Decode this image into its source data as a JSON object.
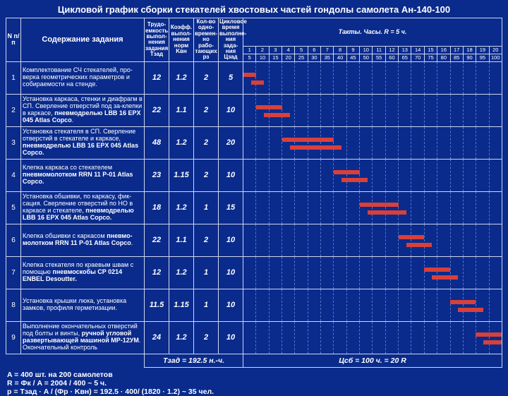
{
  "title": "Цикловой график сборки стекателей хвостовых частей гондолы самолета Ан-140-100",
  "hdr": {
    "n": "N п/п",
    "desc": "Содержание задания",
    "t": "Трудо-емкость выпол-нения задания Тзад",
    "k": "Коэфф. выпол-нения норм Kвн",
    "p": "Кол-во одно-времен-но рабо-тающих рз",
    "c": "Цикловое время выполне-ния зада-ния Цзад",
    "takt": "Такты. Часы. R = 5 ч."
  },
  "axis_top": [
    "1",
    "2",
    "3",
    "4",
    "5",
    "6",
    "7",
    "8",
    "9",
    "10",
    "11",
    "12",
    "13",
    "14",
    "15",
    "16",
    "17",
    "18",
    "19",
    "20"
  ],
  "axis_bot": [
    "5",
    "10",
    "15",
    "20",
    "25",
    "30",
    "35",
    "40",
    "45",
    "50",
    "55",
    "60",
    "65",
    "70",
    "75",
    "80",
    "85",
    "90",
    "95",
    "100"
  ],
  "rows": [
    {
      "n": "1",
      "d": "Комплектование СЧ стекателей, про-верка геометрических параметров и собираемости на стенде.",
      "t": "12",
      "k": "1.2",
      "p": "2",
      "c": "5",
      "s1": 0,
      "w1": 5,
      "s2": 3,
      "w2": 5
    },
    {
      "n": "2",
      "d": "Установка каркаса, стенки и диафрагм в СП. Сверление отверстий под за-клепки в каркасе, <b>пневмодрелью LBB 16 EPX 045 Atlas Copco</b>.",
      "t": "22",
      "k": "1.1",
      "p": "2",
      "c": "10",
      "s1": 5,
      "w1": 10,
      "s2": 8,
      "w2": 10
    },
    {
      "n": "3",
      "d": "Установка стекателя в СП. Сверление отверстий в стекателе и каркасе, <b>пневмодрелью LBB 16 EPX 045 Atlas Copco.</b>",
      "t": "48",
      "k": "1.2",
      "p": "2",
      "c": "20",
      "s1": 15,
      "w1": 20,
      "s2": 18,
      "w2": 20
    },
    {
      "n": "4",
      "d": "Клепка каркаса со стекателем <b>пневмомолотком RRN 11 P-01 Atlas Copco.</b>",
      "t": "23",
      "k": "1.15",
      "p": "2",
      "c": "10",
      "s1": 35,
      "w1": 10,
      "s2": 38,
      "w2": 10
    },
    {
      "n": "5",
      "d": "Установка обшивки, по каркасу, фик-сация. Сверление отверстий по НО в каркасе и стекателе, <b>пневмодрелью LBB 16 EPX 045 Atlas Copco.</b>",
      "t": "18",
      "k": "1.2",
      "p": "1",
      "c": "15",
      "s1": 45,
      "w1": 15,
      "s2": 48,
      "w2": 15
    },
    {
      "n": "6",
      "d": "Клепка обшивки с каркасом <b>пневмо-молотком RRN 11 P-01 Atlas Copco</b>.",
      "t": "22",
      "k": "1.1",
      "p": "2",
      "c": "10",
      "s1": 60,
      "w1": 10,
      "s2": 63,
      "w2": 10
    },
    {
      "n": "7",
      "d": "Клепка стекателя по краевым швам с помощью <b>пневмоскобы CP 0214 ENBEL Desoutter.</b>",
      "t": "12",
      "k": "1.2",
      "p": "1",
      "c": "10",
      "s1": 70,
      "w1": 10,
      "s2": 73,
      "w2": 10
    },
    {
      "n": "8",
      "d": "Установка крышки люка, установка замков, профиля герметизации.",
      "t": "11.5",
      "k": "1.15",
      "p": "1",
      "c": "10",
      "s1": 80,
      "w1": 10,
      "s2": 83,
      "w2": 10
    },
    {
      "n": "9",
      "d": "Выполнение окончательных отверстий под болты и винты, <b>ручной угловой развертывающей машиной МР-12УМ</b>. Окончательный контроль",
      "t": "24",
      "k": "1.2",
      "p": "2",
      "c": "10",
      "s1": 90,
      "w1": 10,
      "s2": 93,
      "w2": 7
    }
  ],
  "sum_t": "Тзад = 192.5 н.-ч.",
  "sum_c": "Цсб = 100 ч. = 20 R",
  "footer": [
    "A = <b>400</b> шт. на 200 самолетов",
    "R = Фк / A = 2004 / 400 ~ <b>5 ч.</b>",
    "p = Тзад · A / (Фр · Kвн) = 192.5 · 400/ (1820 · 1.2) ~ <b>35 чел.</b>"
  ]
}
